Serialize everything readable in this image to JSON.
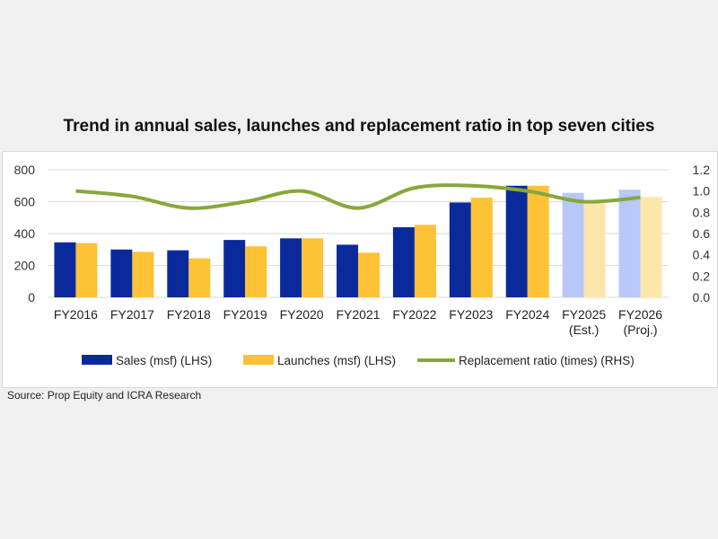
{
  "chart_data": {
    "type": "bar",
    "title": "Trend in annual sales, launches and replacement ratio in top seven cities",
    "categories": [
      [
        "FY2016"
      ],
      [
        "FY2017"
      ],
      [
        "FY2018"
      ],
      [
        "FY2019"
      ],
      [
        "FY2020"
      ],
      [
        "FY2021"
      ],
      [
        "FY2022"
      ],
      [
        "FY2023"
      ],
      [
        "FY2024"
      ],
      [
        "FY2025",
        "(Est.)"
      ],
      [
        "FY2026",
        "(Proj.)"
      ]
    ],
    "left_axis": {
      "ylim": [
        0,
        800
      ],
      "ticks": [
        "0",
        "200",
        "400",
        "600",
        "800"
      ]
    },
    "right_axis": {
      "ylim": [
        0,
        1.2
      ],
      "ticks": [
        "0.0",
        "0.2",
        "0.4",
        "0.6",
        "0.8",
        "1.0",
        "1.2"
      ]
    },
    "grid": true,
    "legend_position": "bottom",
    "series": [
      {
        "name": "Sales (msf) (LHS)",
        "type": "bar",
        "axis": "left",
        "color": "#0a2a9c",
        "projected_color": "#b8c8f8",
        "values": [
          345,
          300,
          295,
          360,
          370,
          330,
          440,
          595,
          700,
          655,
          675
        ]
      },
      {
        "name": "Launches (msf) (LHS)",
        "type": "bar",
        "axis": "left",
        "color": "#fdc236",
        "projected_color": "#fde6ab",
        "values": [
          340,
          285,
          245,
          320,
          370,
          280,
          455,
          625,
          700,
          590,
          630
        ]
      },
      {
        "name": "Replacement ratio (times) (RHS)",
        "type": "line",
        "axis": "right",
        "color": "#86a83a",
        "values": [
          1.0,
          0.95,
          0.84,
          0.9,
          1.0,
          0.84,
          1.03,
          1.05,
          1.0,
          0.9,
          0.94
        ]
      }
    ],
    "projected_from_index": 9
  },
  "source": "Source: Prop Equity and ICRA Research"
}
